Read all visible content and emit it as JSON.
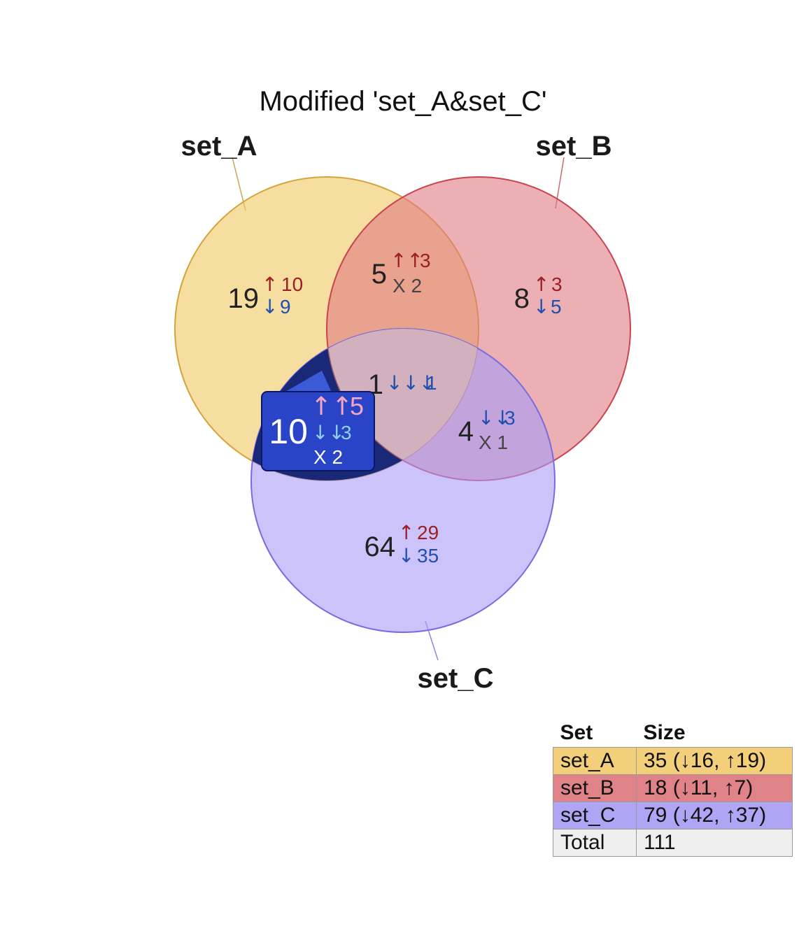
{
  "title": "Modified 'set_A&set_C'",
  "sets": [
    {
      "name": "set_A",
      "fill": "#f0c860",
      "stroke": "#d4a43c"
    },
    {
      "name": "set_B",
      "fill": "#e07a80",
      "stroke": "#c9444e"
    },
    {
      "name": "set_C",
      "fill": "#a89bf5",
      "stroke": "#7a6ae0"
    }
  ],
  "regions": {
    "a_only": {
      "count": "19",
      "up_arrows": "↑",
      "up": "10",
      "down_arrows": "↓",
      "down": "9"
    },
    "ab": {
      "count": "5",
      "up_arrows": "↑↑",
      "up": "3",
      "mixed": "X 2"
    },
    "b_only": {
      "count": "8",
      "up_arrows": "↑",
      "up": "3",
      "down_arrows": "↓",
      "down": "5"
    },
    "abc": {
      "count": "1",
      "down_arrows": "↓↓↓",
      "down": "1"
    },
    "ac": {
      "count": "10",
      "up_arrows": "↑↑",
      "up": "5",
      "down_arrows": "↓↓",
      "down": "3",
      "mixed": "X 2"
    },
    "bc": {
      "count": "4",
      "down_arrows": "↓↓",
      "down": "3",
      "mixed": "X 1"
    },
    "c_only": {
      "count": "64",
      "up_arrows": "↑",
      "up": "29",
      "down_arrows": "↓",
      "down": "35"
    }
  },
  "colors": {
    "up": "#9c1f26",
    "down": "#1f4fb0",
    "mixed": "#444444",
    "highlight_region": "#1a2878",
    "highlight_box": "#2a44c8",
    "highlight_up": "#f3a6c4",
    "highlight_down": "#8fd0f0"
  },
  "legend": {
    "headers": [
      "Set",
      "Size"
    ],
    "rows": [
      {
        "set": "set_A",
        "size": "35 (↓16, ↑19)",
        "color": "#f2cf78"
      },
      {
        "set": "set_B",
        "size": "18 (↓11, ↑7)",
        "color": "#e08388"
      },
      {
        "set": "set_C",
        "size": "79 (↓42, ↑37)",
        "color": "#b0a5f4"
      },
      {
        "set": "Total",
        "size": "111",
        "color": "#efefef"
      }
    ]
  }
}
